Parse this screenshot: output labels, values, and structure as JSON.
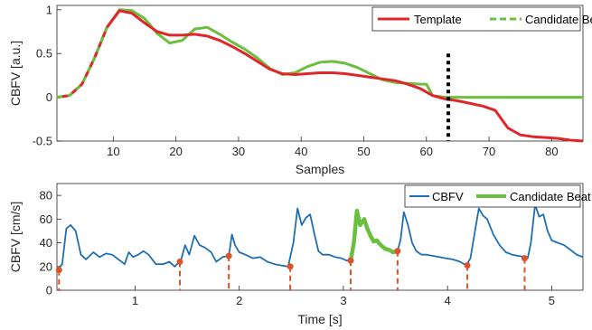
{
  "chart_data": [
    {
      "type": "line",
      "xlabel": "Samples",
      "ylabel": "CBFV [a.u.]",
      "xlim": [
        1,
        85
      ],
      "ylim": [
        -0.5,
        1.05
      ],
      "xticks": [
        10,
        20,
        30,
        40,
        50,
        60,
        70,
        80
      ],
      "yticks": [
        -0.5,
        0,
        0.5,
        1
      ],
      "ytick_labels": [
        "-0.5",
        "0",
        "0.5",
        "1"
      ],
      "legend_position": "top-right",
      "series": [
        {
          "name": "Template",
          "color": "#e0262a",
          "style": "solid",
          "x": [
            1,
            3,
            5,
            7,
            9,
            11,
            13,
            15,
            17,
            19,
            21,
            23,
            25,
            27,
            29,
            31,
            33,
            35,
            37,
            39,
            41,
            43,
            45,
            47,
            49,
            51,
            53,
            55,
            57,
            59,
            61,
            63,
            65,
            67,
            69,
            71,
            73,
            75,
            77,
            79,
            81,
            83,
            85
          ],
          "y": [
            0.0,
            0.02,
            0.15,
            0.45,
            0.8,
            0.99,
            0.96,
            0.85,
            0.75,
            0.71,
            0.71,
            0.72,
            0.7,
            0.65,
            0.58,
            0.5,
            0.41,
            0.32,
            0.27,
            0.26,
            0.27,
            0.28,
            0.28,
            0.27,
            0.25,
            0.23,
            0.21,
            0.19,
            0.15,
            0.1,
            0.02,
            -0.02,
            -0.04,
            -0.07,
            -0.1,
            -0.15,
            -0.35,
            -0.43,
            -0.45,
            -0.46,
            -0.47,
            -0.49,
            -0.5
          ]
        },
        {
          "name": "Candidate Beat",
          "color": "#6bbf3f",
          "style": "solid-with-dashed-start",
          "x": [
            1,
            3,
            5,
            7,
            9,
            11,
            13,
            15,
            17,
            19,
            21,
            23,
            25,
            27,
            29,
            31,
            33,
            35,
            37,
            39,
            41,
            43,
            45,
            47,
            49,
            51,
            53,
            55,
            57,
            59,
            60,
            61,
            63,
            65,
            70,
            75,
            80,
            85
          ],
          "y": [
            0.0,
            0.02,
            0.15,
            0.45,
            0.8,
            1.0,
            0.99,
            0.9,
            0.73,
            0.62,
            0.65,
            0.78,
            0.8,
            0.72,
            0.63,
            0.55,
            0.45,
            0.33,
            0.26,
            0.28,
            0.35,
            0.4,
            0.41,
            0.39,
            0.34,
            0.27,
            0.2,
            0.17,
            0.16,
            0.15,
            0.15,
            0.02,
            0.0,
            0.0,
            0.0,
            0.0,
            0.0,
            0.0
          ]
        }
      ],
      "vline": {
        "x": 63.5,
        "color": "#000000",
        "style": "dotted"
      }
    },
    {
      "type": "line",
      "xlabel": "Time [s]",
      "ylabel": "CBFV [cm/s]",
      "xlim": [
        0.25,
        5.3
      ],
      "ylim": [
        0,
        90
      ],
      "xticks": [
        1,
        2,
        3,
        4,
        5
      ],
      "yticks": [
        0,
        20,
        40,
        60,
        80
      ],
      "legend_position": "top-right",
      "series": [
        {
          "name": "CBFV",
          "color": "#1f6fb2",
          "x": [
            0.25,
            0.3,
            0.34,
            0.38,
            0.43,
            0.48,
            0.53,
            0.6,
            0.66,
            0.72,
            0.78,
            0.84,
            0.9,
            0.94,
            0.98,
            1.03,
            1.08,
            1.13,
            1.2,
            1.27,
            1.33,
            1.38,
            1.44,
            1.48,
            1.52,
            1.57,
            1.62,
            1.67,
            1.73,
            1.78,
            1.84,
            1.9,
            1.93,
            1.96,
            2.0,
            2.06,
            2.13,
            2.2,
            2.27,
            2.34,
            2.4,
            2.47,
            2.52,
            2.56,
            2.6,
            2.64,
            2.68,
            2.72,
            2.76,
            2.8,
            2.86,
            2.92,
            2.98,
            3.03,
            3.07,
            3.1,
            3.13,
            3.16,
            3.2,
            3.23,
            3.26,
            3.29,
            3.32,
            3.36,
            3.4,
            3.44,
            3.48,
            3.52,
            3.55,
            3.58,
            3.62,
            3.66,
            3.7,
            3.75,
            3.8,
            3.86,
            3.92,
            3.98,
            4.05,
            4.12,
            4.18,
            4.22,
            4.26,
            4.3,
            4.34,
            4.38,
            4.44,
            4.5,
            4.56,
            4.62,
            4.68,
            4.74,
            4.77,
            4.8,
            4.84,
            4.88,
            4.92,
            4.96,
            5.0,
            5.06,
            5.12,
            5.18,
            5.24,
            5.3
          ],
          "y": [
            17,
            22,
            52,
            55,
            50,
            30,
            26,
            32,
            28,
            31,
            30,
            26,
            22,
            32,
            28,
            30,
            33,
            30,
            22,
            22,
            24,
            20,
            25,
            38,
            30,
            46,
            38,
            36,
            32,
            24,
            28,
            29,
            47,
            38,
            32,
            30,
            27,
            28,
            24,
            22,
            21,
            20,
            40,
            69,
            55,
            61,
            64,
            48,
            33,
            30,
            30,
            28,
            27,
            25,
            25,
            40,
            67,
            55,
            60,
            52,
            46,
            41,
            42,
            38,
            35,
            34,
            32,
            33,
            43,
            66,
            55,
            40,
            33,
            30,
            30,
            29,
            28,
            27,
            26,
            24,
            21,
            27,
            48,
            69,
            63,
            60,
            47,
            38,
            32,
            30,
            29,
            28,
            27,
            40,
            72,
            62,
            64,
            50,
            42,
            40,
            38,
            34,
            30,
            28
          ]
        },
        {
          "name": "Candidate Beat",
          "color": "#6bbf3f",
          "x": [
            3.07,
            3.1,
            3.13,
            3.16,
            3.2,
            3.23,
            3.26,
            3.29,
            3.32,
            3.36,
            3.4,
            3.44,
            3.48,
            3.52
          ],
          "y": [
            25,
            40,
            67,
            55,
            60,
            52,
            46,
            41,
            42,
            38,
            35,
            34,
            32,
            33
          ]
        }
      ],
      "beat_onsets": {
        "color": "#d9532b",
        "x": [
          0.27,
          1.43,
          1.9,
          2.49,
          3.07,
          3.52,
          4.19,
          4.74
        ],
        "y": [
          17,
          24,
          29,
          20,
          25,
          33,
          21,
          27
        ]
      }
    }
  ]
}
